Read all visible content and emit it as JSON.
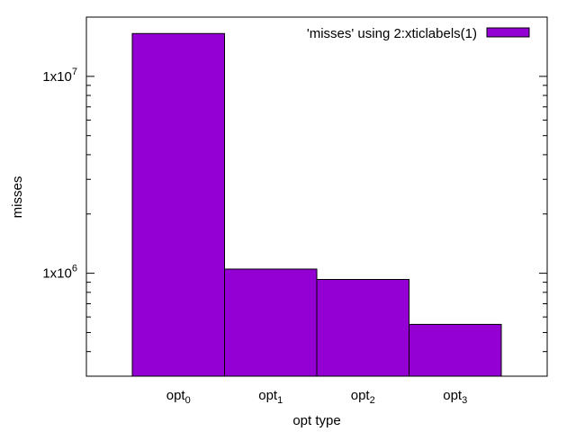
{
  "chart_data": {
    "type": "bar",
    "categories": [
      {
        "base": "opt",
        "sub": "0"
      },
      {
        "base": "opt",
        "sub": "1"
      },
      {
        "base": "opt",
        "sub": "2"
      },
      {
        "base": "opt",
        "sub": "3"
      }
    ],
    "series": [
      {
        "name": "'misses' using 2:xticlabels(1)",
        "values": [
          16500000,
          1050000,
          930000,
          550000
        ],
        "color": "#9400d3"
      }
    ],
    "xlabel": "opt type",
    "ylabel": "misses",
    "yscale": "log",
    "ylim": [
      300000,
      20000000
    ],
    "yticks": [
      {
        "value": 1000000,
        "base": "1x10",
        "exp": "6"
      },
      {
        "value": 10000000,
        "base": "1x10",
        "exp": "7"
      }
    ],
    "grid": false,
    "legend": "top-right"
  }
}
